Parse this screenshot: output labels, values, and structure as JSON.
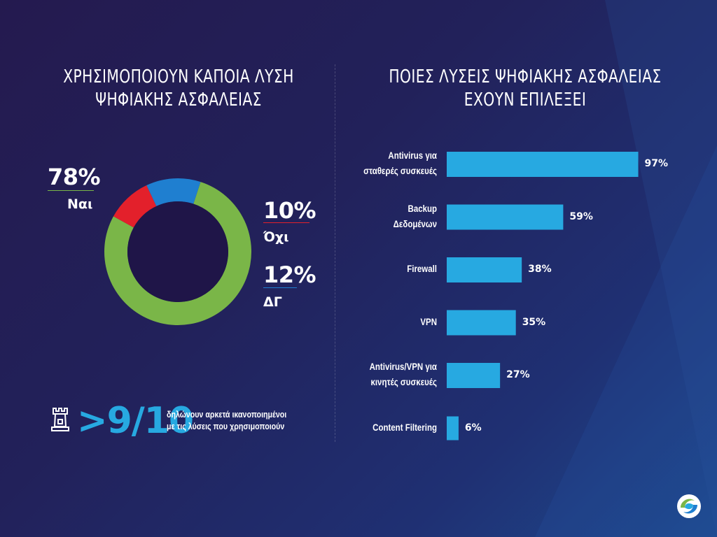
{
  "left_title": [
    "ΧΡΗΣΙΜΟΠΟΙΟΥΝ ΚΑΠΟΙΑ ΛΥΣΗ",
    "ΨΗΦΙΑΚΗΣ ΑΣΦΑΛΕΙΑΣ"
  ],
  "right_title": [
    "ΠΟΙΕΣ ΛΥΣΕΙΣ ΨΗΦΙΑΚΗΣ ΑΣΦΑΛΕΙΑΣ",
    "ΕΧΟΥΝ ΕΠΙΛΕΞΕΙ"
  ],
  "colors": {
    "yes": "#7ab648",
    "no": "#e3202b",
    "dk": "#1f7fd0",
    "bar": "#27a9e1",
    "hole": "#1f1548",
    "stat": "#27a9e1"
  },
  "chart_data": [
    {
      "type": "pie",
      "title": "ΧΡΗΣΙΜΟΠΟΙΟΥΝ ΚΑΠΟΙΑ ΛΥΣΗ ΨΗΦΙΑΚΗΣ ΑΣΦΑΛΕΙΑΣ",
      "style": "donut",
      "slices": [
        {
          "label": "Ναι",
          "value": 78,
          "display": "78%"
        },
        {
          "label": "Όχι",
          "value": 10,
          "display": "10%"
        },
        {
          "label": "ΔΓ",
          "value": 12,
          "display": "12%"
        }
      ]
    },
    {
      "type": "bar",
      "orientation": "horizontal",
      "title": "ΠΟΙΕΣ ΛΥΣΕΙΣ ΨΗΦΙΑΚΗΣ ΑΣΦΑΛΕΙΑΣ ΕΧΟΥΝ ΕΠΙΛΕΞΕΙ",
      "categories": [
        [
          "Antivirus για",
          "σταθερές συσκευές"
        ],
        [
          "Backup",
          "Δεδομένων"
        ],
        [
          "Firewall"
        ],
        [
          "VPN"
        ],
        [
          "Antivirus/VPN για",
          "κινητές συσκευές"
        ],
        [
          "Content Filtering"
        ]
      ],
      "values": [
        97,
        59,
        38,
        35,
        27,
        6
      ],
      "value_labels": [
        "97%",
        "59%",
        "38%",
        "35%",
        "27%",
        "6%"
      ],
      "xlim": [
        0,
        100
      ]
    }
  ],
  "stat": {
    "value": ">9/10",
    "text": [
      "δηλώνουν αρκετά ικανοποιημένοι",
      "με τις λύσεις που χρησιμοποιούν"
    ],
    "icon": "rook-icon"
  },
  "logo": "company-logo"
}
